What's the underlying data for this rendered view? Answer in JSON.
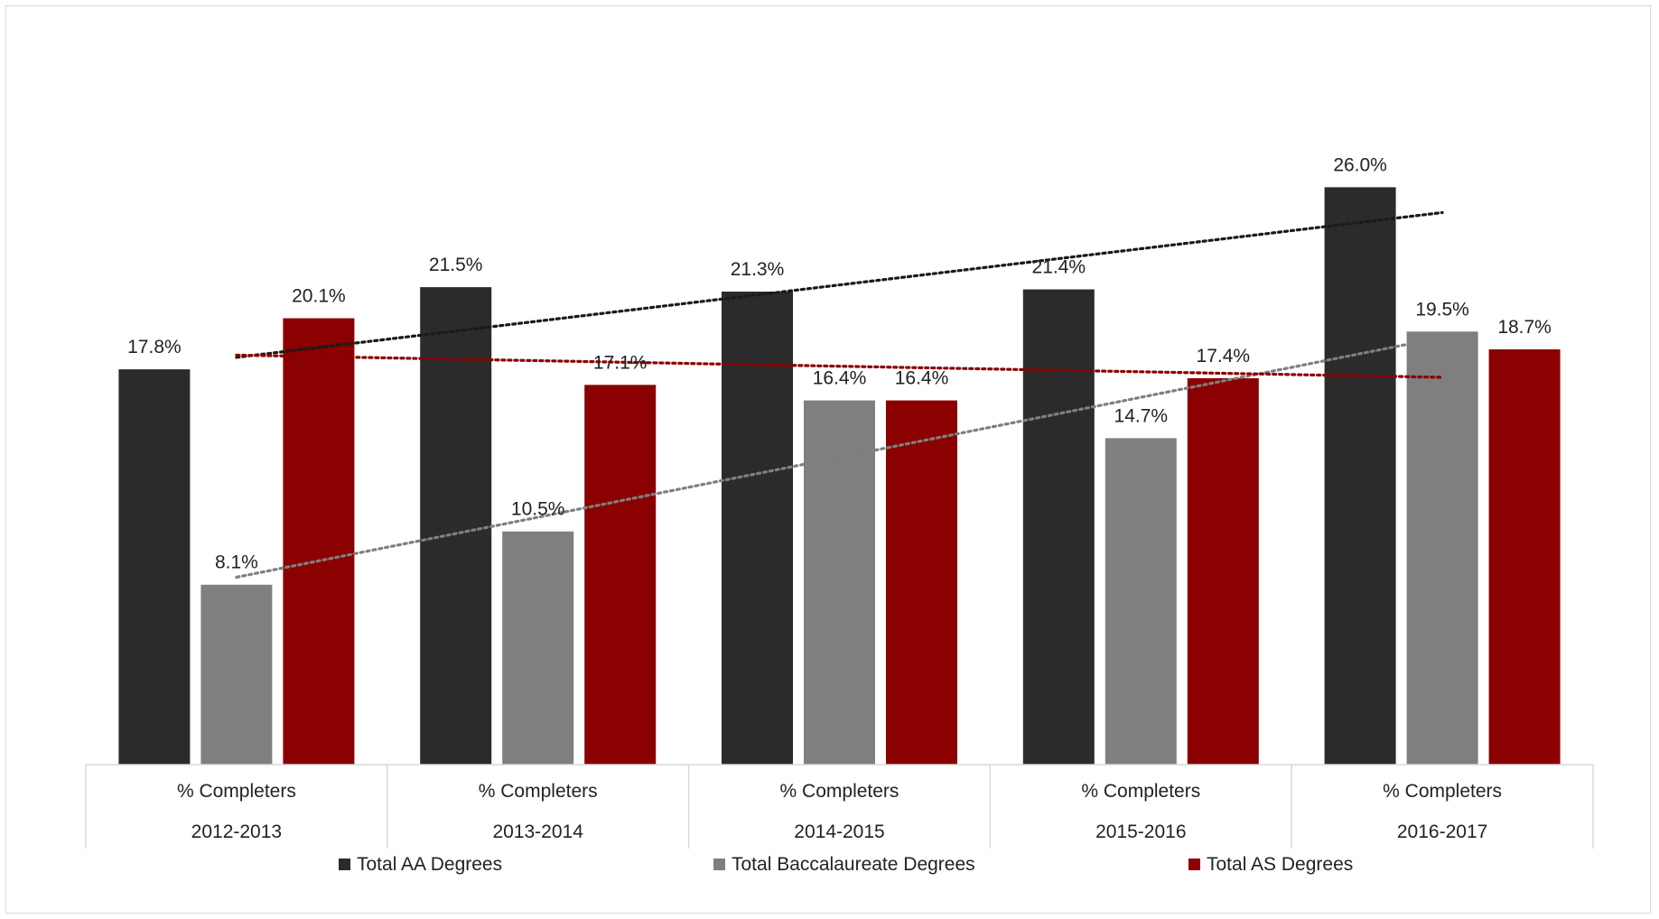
{
  "chart_data": {
    "type": "bar",
    "categories": [
      {
        "top": "% Completers",
        "bottom": "2012-2013"
      },
      {
        "top": "% Completers",
        "bottom": "2013-2014"
      },
      {
        "top": "% Completers",
        "bottom": "2014-2015"
      },
      {
        "top": "% Completers",
        "bottom": "2015-2016"
      },
      {
        "top": "% Completers",
        "bottom": "2016-2017"
      }
    ],
    "series": [
      {
        "name": "Total AA Degrees",
        "color": "#2b2b2b",
        "trend_color": "#1a1a1a",
        "values": [
          17.8,
          21.5,
          21.3,
          21.4,
          26.0
        ],
        "labels": [
          "17.8%",
          "21.5%",
          "21.3%",
          "21.4%",
          "26.0%"
        ]
      },
      {
        "name": "Total Baccalaureate Degrees",
        "color": "#7f7f7f",
        "trend_color": "#7f7f7f",
        "values": [
          8.1,
          10.5,
          16.4,
          14.7,
          19.5
        ],
        "labels": [
          "8.1%",
          "10.5%",
          "16.4%",
          "14.7%",
          "19.5%"
        ]
      },
      {
        "name": "Total AS Degrees",
        "color": "#8b0000",
        "trend_color": "#8b0000",
        "values": [
          20.1,
          17.1,
          16.4,
          17.4,
          18.7
        ],
        "labels": [
          "20.1%",
          "17.1%",
          "16.4%",
          "17.4%",
          "18.7%"
        ]
      }
    ],
    "trendlines": "linear, dotted, one per series",
    "ylim": [
      0,
      30
    ],
    "grid": false,
    "legend": "bottom"
  }
}
